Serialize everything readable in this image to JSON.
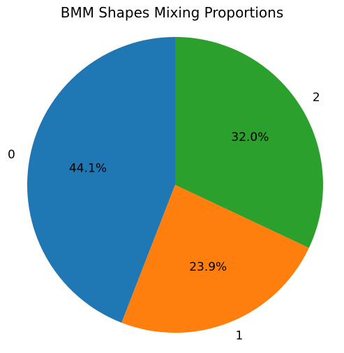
{
  "chart_data": {
    "type": "pie",
    "title": "BMM Shapes Mixing Proportions",
    "categories": [
      "0",
      "1",
      "2"
    ],
    "values": [
      44.1,
      23.9,
      32.0
    ],
    "value_labels": [
      "44.1%",
      "23.9%",
      "32.0%"
    ],
    "colors": [
      "#1f77b4",
      "#ff7f0e",
      "#2ca02c"
    ],
    "start_angle": "top",
    "direction": "counterclockwise",
    "legend": "none"
  }
}
